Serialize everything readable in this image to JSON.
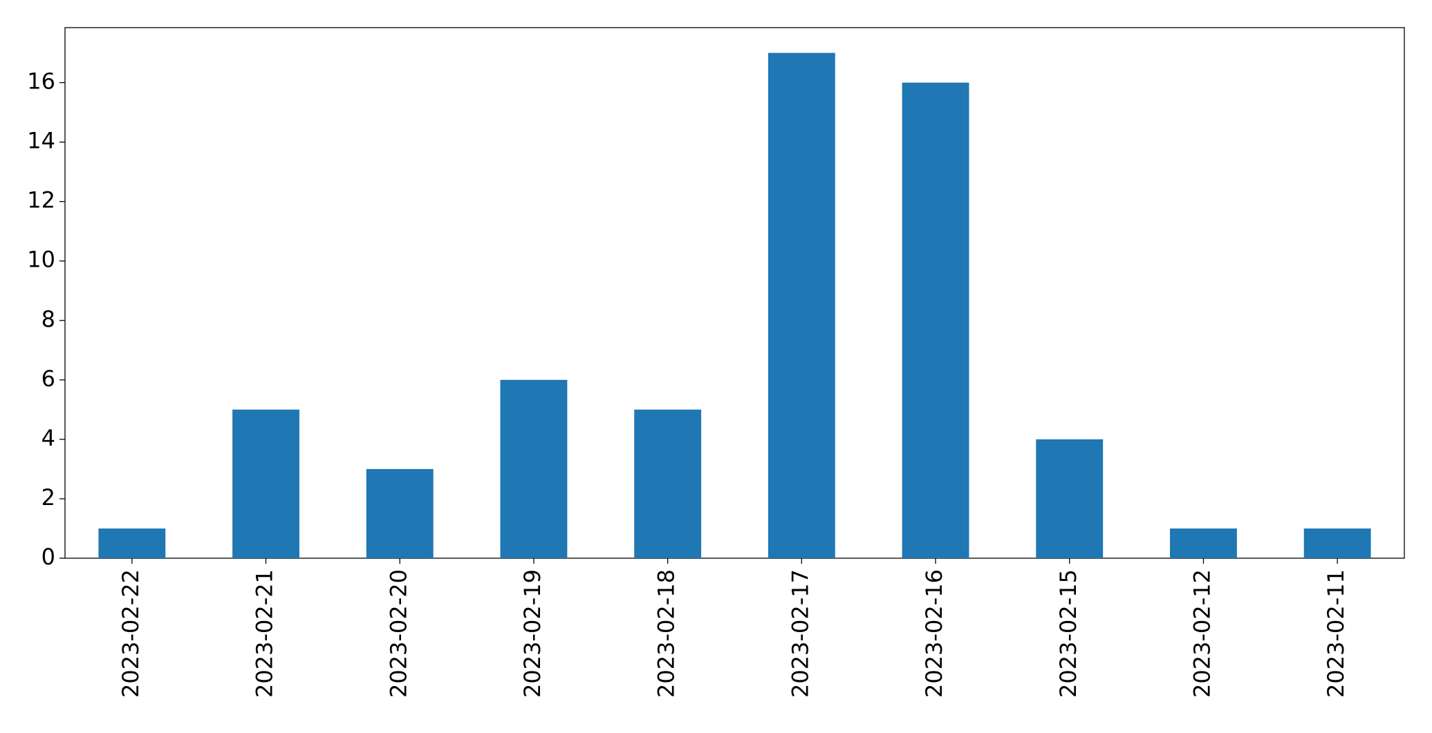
{
  "chart_data": {
    "type": "bar",
    "categories": [
      "2023-02-22",
      "2023-02-21",
      "2023-02-20",
      "2023-02-19",
      "2023-02-18",
      "2023-02-17",
      "2023-02-16",
      "2023-02-15",
      "2023-02-12",
      "2023-02-11"
    ],
    "values": [
      1,
      5,
      3,
      6,
      5,
      17,
      16,
      4,
      1,
      1
    ],
    "color": "#1f77b4",
    "ylim": [
      0,
      17.85
    ],
    "yticks": [
      0,
      2,
      4,
      6,
      8,
      10,
      12,
      14,
      16
    ],
    "grid": false
  }
}
